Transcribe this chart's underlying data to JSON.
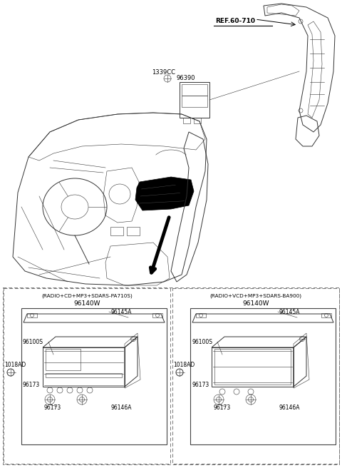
{
  "bg_color": "#ffffff",
  "fig_width": 4.8,
  "fig_height": 6.56,
  "ref_label": "REF.60-710",
  "antenna_label1": "1339CC",
  "antenna_label2": "96390",
  "left_box_title": "(RADIO+CD+MP3+SDARS-PA710S)",
  "left_box_part": "96140W",
  "right_box_title": "(RADIO+VCD+MP3+SDARS-BA900)",
  "right_box_part": "96140W",
  "parts_left": [
    "96145A",
    "96100S",
    "1018AD",
    "96173",
    "96173",
    "96146A"
  ],
  "parts_right": [
    "96145A",
    "96100S",
    "1018AD",
    "96173",
    "96173",
    "96146A"
  ],
  "lc": "#333333",
  "lw_main": 0.7,
  "lw_thin": 0.4
}
